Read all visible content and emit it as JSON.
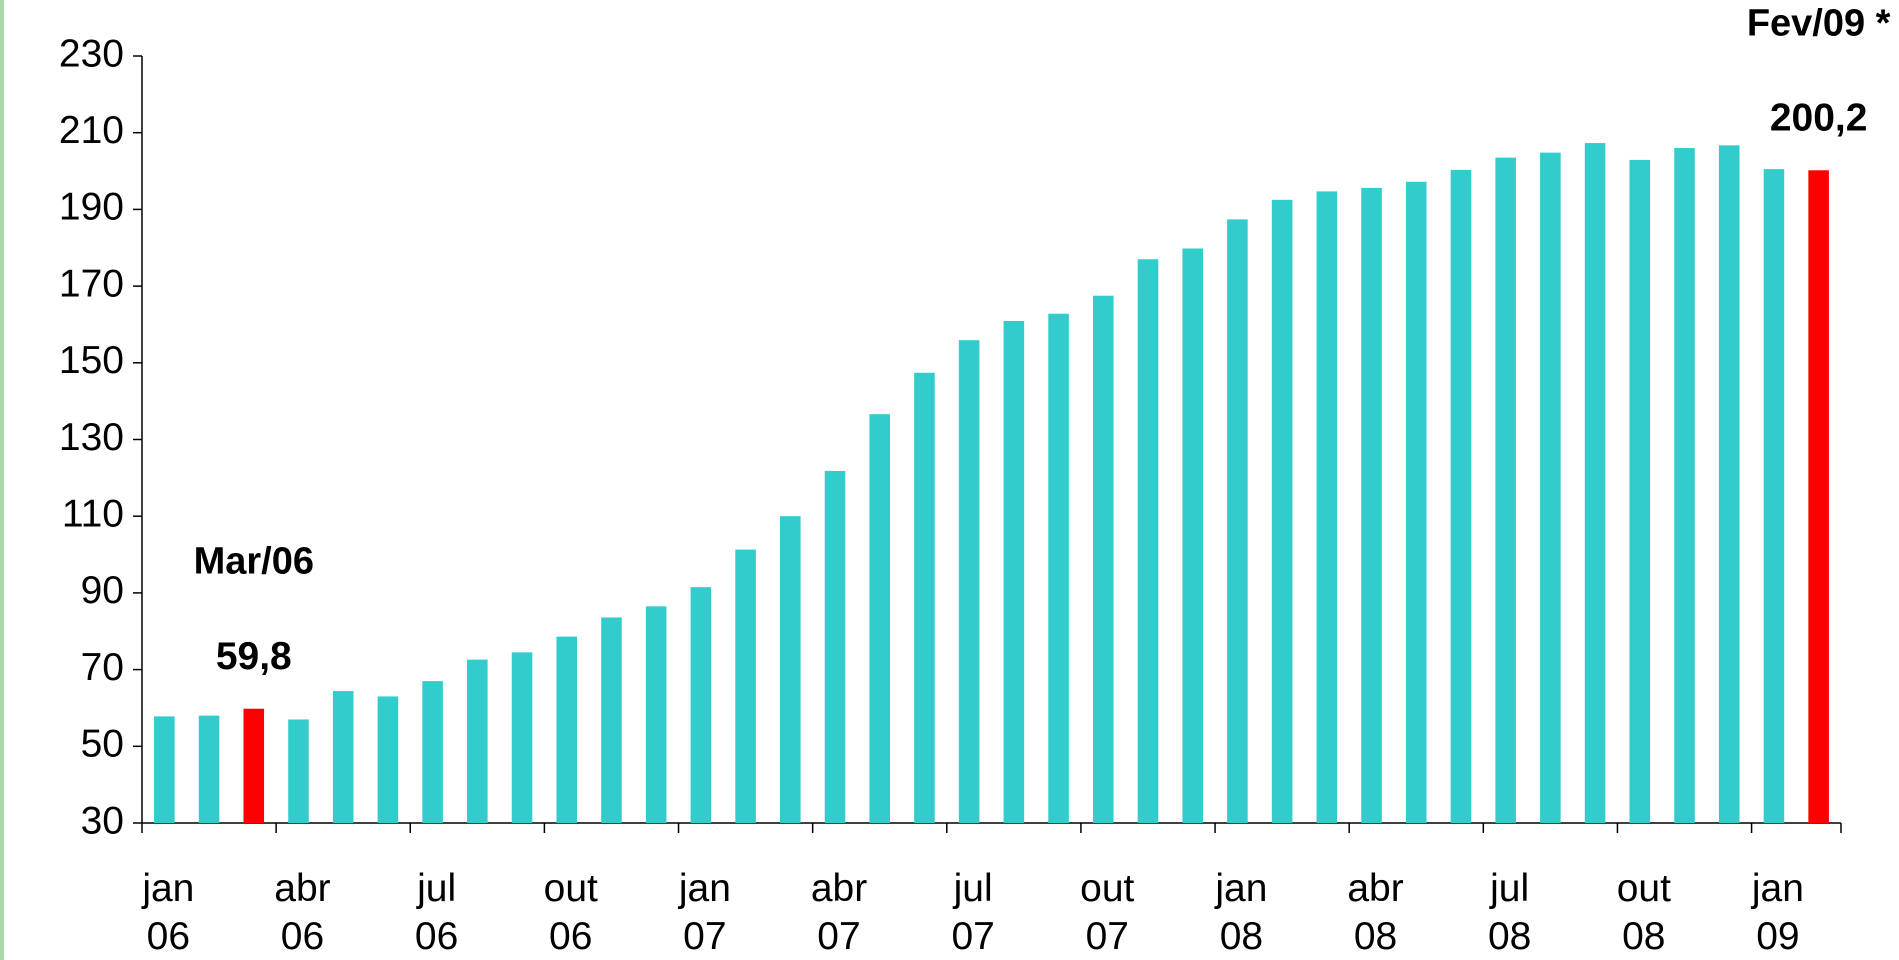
{
  "chart_data": {
    "type": "bar",
    "categories": [
      "jan\n06",
      null,
      null,
      "abr\n06",
      null,
      null,
      "jul\n06",
      null,
      null,
      "out\n06",
      null,
      null,
      "jan\n07",
      null,
      null,
      "abr\n07",
      null,
      null,
      "jul\n07",
      null,
      null,
      "out\n07",
      null,
      null,
      "jan\n08",
      null,
      null,
      "abr\n08",
      null,
      null,
      "jul\n08",
      null,
      null,
      "out\n08",
      null,
      null,
      "jan\n09",
      null
    ],
    "values": [
      57.8,
      58,
      59.8,
      57,
      64.4,
      63,
      67,
      72.6,
      74.5,
      78.6,
      83.6,
      86.5,
      91.5,
      101.3,
      110,
      121.8,
      136.6,
      147.4,
      155.9,
      160.9,
      162.8,
      167.5,
      177,
      179.8,
      187.4,
      192.5,
      194.7,
      195.6,
      197.2,
      200.3,
      203.5,
      204.8,
      207.3,
      202.9,
      206,
      206.7,
      200.5,
      200.2
    ],
    "value_labels": [
      null,
      null,
      "59,8",
      null,
      null,
      null,
      null,
      null,
      null,
      null,
      null,
      null,
      null,
      null,
      null,
      null,
      null,
      null,
      null,
      null,
      null,
      null,
      null,
      null,
      null,
      null,
      null,
      null,
      null,
      null,
      null,
      null,
      null,
      null,
      null,
      null,
      null,
      "200,2"
    ],
    "colors": [
      "#33cccc",
      "#33cccc",
      "#ff0000",
      "#33cccc",
      "#33cccc",
      "#33cccc",
      "#33cccc",
      "#33cccc",
      "#33cccc",
      "#33cccc",
      "#33cccc",
      "#33cccc",
      "#33cccc",
      "#33cccc",
      "#33cccc",
      "#33cccc",
      "#33cccc",
      "#33cccc",
      "#33cccc",
      "#33cccc",
      "#33cccc",
      "#33cccc",
      "#33cccc",
      "#33cccc",
      "#33cccc",
      "#33cccc",
      "#33cccc",
      "#33cccc",
      "#33cccc",
      "#33cccc",
      "#33cccc",
      "#33cccc",
      "#33cccc",
      "#33cccc",
      "#33cccc",
      "#33cccc",
      "#33cccc",
      "#ff0000"
    ],
    "annotations": [
      "Mar/06",
      "Fev/09 *"
    ],
    "ylim": [
      30,
      230
    ],
    "yticks": [
      30,
      50,
      70,
      90,
      110,
      130,
      150,
      170,
      190,
      210,
      230
    ]
  }
}
